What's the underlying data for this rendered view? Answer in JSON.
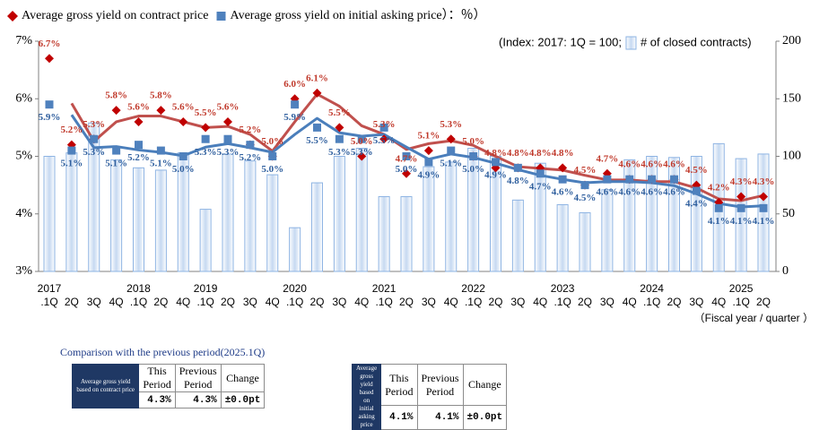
{
  "chart_data": {
    "type": "combo",
    "categories": [
      ".1Q",
      "2Q",
      "3Q",
      "4Q",
      ".1Q",
      "2Q",
      "4Q",
      ".1Q",
      "2Q",
      "3Q",
      "4Q",
      ".1Q",
      "2Q",
      "3Q",
      "4Q",
      ".1Q",
      "2Q",
      "3Q",
      "4Q",
      ".1Q",
      "2Q",
      "3Q",
      "4Q",
      ".1Q",
      "2Q",
      "3Q",
      "4Q",
      ".1Q",
      "2Q",
      "3Q",
      "4Q",
      ".1Q",
      "2Q"
    ],
    "years": [
      "2017",
      "2018",
      "2019",
      "2020",
      "2021",
      "2022",
      "2023",
      "2024",
      "2025"
    ],
    "series": [
      {
        "name": "Average gross yield on contract price",
        "mark": "diamond",
        "color": "#c00000",
        "label_color": "#c0392b",
        "values": [
          6.7,
          5.2,
          5.3,
          5.8,
          5.6,
          5.8,
          5.6,
          5.5,
          5.6,
          5.2,
          5.0,
          6.0,
          6.1,
          5.5,
          5.0,
          5.3,
          4.7,
          5.1,
          5.3,
          5.0,
          4.8,
          4.8,
          4.8,
          4.8,
          4.5,
          4.7,
          4.6,
          4.6,
          4.6,
          4.5,
          4.2,
          4.3,
          4.3
        ],
        "value_labels": [
          "6.7%",
          "5.2%",
          "5.3%",
          "5.8%",
          "5.6%",
          "5.8%",
          "5.6%",
          "5.5%",
          "5.6%",
          "5.2%",
          "5.0%",
          "6.0%",
          "6.1%",
          "5.5%",
          "5.0%",
          "5.3%",
          "4.7%",
          "5.1%",
          "5.3%",
          "5.0%",
          "4.8%",
          "4.8%",
          "4.8%",
          "4.8%",
          "4.5%",
          "4.7%",
          "4.6%",
          "4.6%",
          "4.6%",
          "4.5%",
          "4.2%",
          "4.3%",
          "4.3%"
        ]
      },
      {
        "name": "Average gross yield on initial asking price",
        "mark": "square",
        "color": "#4f81bd",
        "label_color": "#2f5f9e",
        "values": [
          5.9,
          5.1,
          5.3,
          5.1,
          5.2,
          5.1,
          5.0,
          5.3,
          5.3,
          5.2,
          5.0,
          5.9,
          5.5,
          5.3,
          5.3,
          5.5,
          5.0,
          4.9,
          5.1,
          5.0,
          4.9,
          4.8,
          4.7,
          4.6,
          4.5,
          4.6,
          4.6,
          4.6,
          4.6,
          4.4,
          4.1,
          4.1,
          4.1
        ],
        "value_labels": [
          "5.9%",
          "5.1%",
          "5.3%",
          "5.1%",
          "5.2%",
          "5.1%",
          "5.0%",
          "5.3%",
          "5.3%",
          "5.2%",
          "5.0%",
          "5.9%",
          "5.5%",
          "5.3%",
          "5.3%",
          "5.5%",
          "5.0%",
          "4.9%",
          "5.1%",
          "5.0%",
          "4.9%",
          "4.8%",
          "4.7%",
          "4.6%",
          "4.5%",
          "4.6%",
          "4.6%",
          "4.6%",
          "4.6%",
          "4.4%",
          "4.1%",
          "4.1%",
          "4.1%"
        ]
      },
      {
        "mark": "line",
        "color": "#c0504d",
        "values": [
          null,
          5.92,
          5.26,
          5.6,
          5.7,
          5.7,
          5.6,
          5.5,
          5.52,
          5.38,
          5.09,
          5.6,
          6.08,
          5.87,
          5.53,
          5.38,
          5.12,
          5.22,
          5.27,
          5.19,
          5.0,
          4.82,
          4.79,
          4.76,
          4.67,
          4.59,
          4.59,
          4.56,
          4.56,
          4.45,
          4.26,
          4.23,
          4.32
        ]
      },
      {
        "mark": "line",
        "color": "#4a7ebb",
        "values": [
          null,
          5.72,
          5.15,
          5.17,
          5.11,
          5.07,
          5.01,
          5.16,
          5.22,
          5.15,
          5.07,
          5.38,
          5.66,
          5.41,
          5.35,
          5.38,
          5.16,
          4.95,
          5.04,
          4.98,
          4.88,
          4.77,
          4.67,
          4.6,
          4.54,
          4.56,
          4.56,
          4.54,
          4.49,
          4.35,
          4.18,
          4.12,
          4.14
        ]
      },
      {
        "name": "# of closed contracts)",
        "mark": "bar",
        "axis": "y2",
        "color": "#c6d9f1",
        "edge": "#8eb4e3",
        "values": [
          100,
          103,
          129,
          97,
          90,
          88,
          103,
          54,
          102,
          96,
          84,
          38,
          77,
          100,
          107,
          65,
          65,
          91,
          95,
          107,
          100,
          62,
          94,
          58,
          51,
          71,
          97,
          100,
          99,
          100,
          111,
          98,
          102
        ]
      }
    ],
    "legend_suffix": "）：％）",
    "y2_note": "(Index: 2017: 1Q = 100;",
    "xlabel": "（Fiscal year / quarter ）",
    "ylim": [
      3,
      7
    ],
    "yticks": [
      {
        "value": 3,
        "label": "3%"
      },
      {
        "value": 4,
        "label": "4%"
      },
      {
        "value": 5,
        "label": "5%"
      },
      {
        "value": 6,
        "label": "6%"
      },
      {
        "value": 7,
        "label": "7%"
      }
    ],
    "y2lim": [
      0,
      200
    ],
    "y2ticks": [
      0,
      50,
      100,
      150,
      200
    ]
  },
  "comparison": {
    "title": "Comparison with the previous period(2025.1Q)",
    "tables": [
      {
        "row_header": "Average gross yield based on contract price",
        "columns": [
          "This Period",
          "Previous Period",
          "Change"
        ],
        "values": [
          "4.3%",
          "4.3%",
          "±0.0pt"
        ]
      },
      {
        "row_header": "Average gross yield based on initial asking price",
        "columns": [
          "This Period",
          "Previous Period",
          "Change"
        ],
        "values": [
          "4.1%",
          "4.1%",
          "±0.0pt"
        ]
      }
    ]
  }
}
